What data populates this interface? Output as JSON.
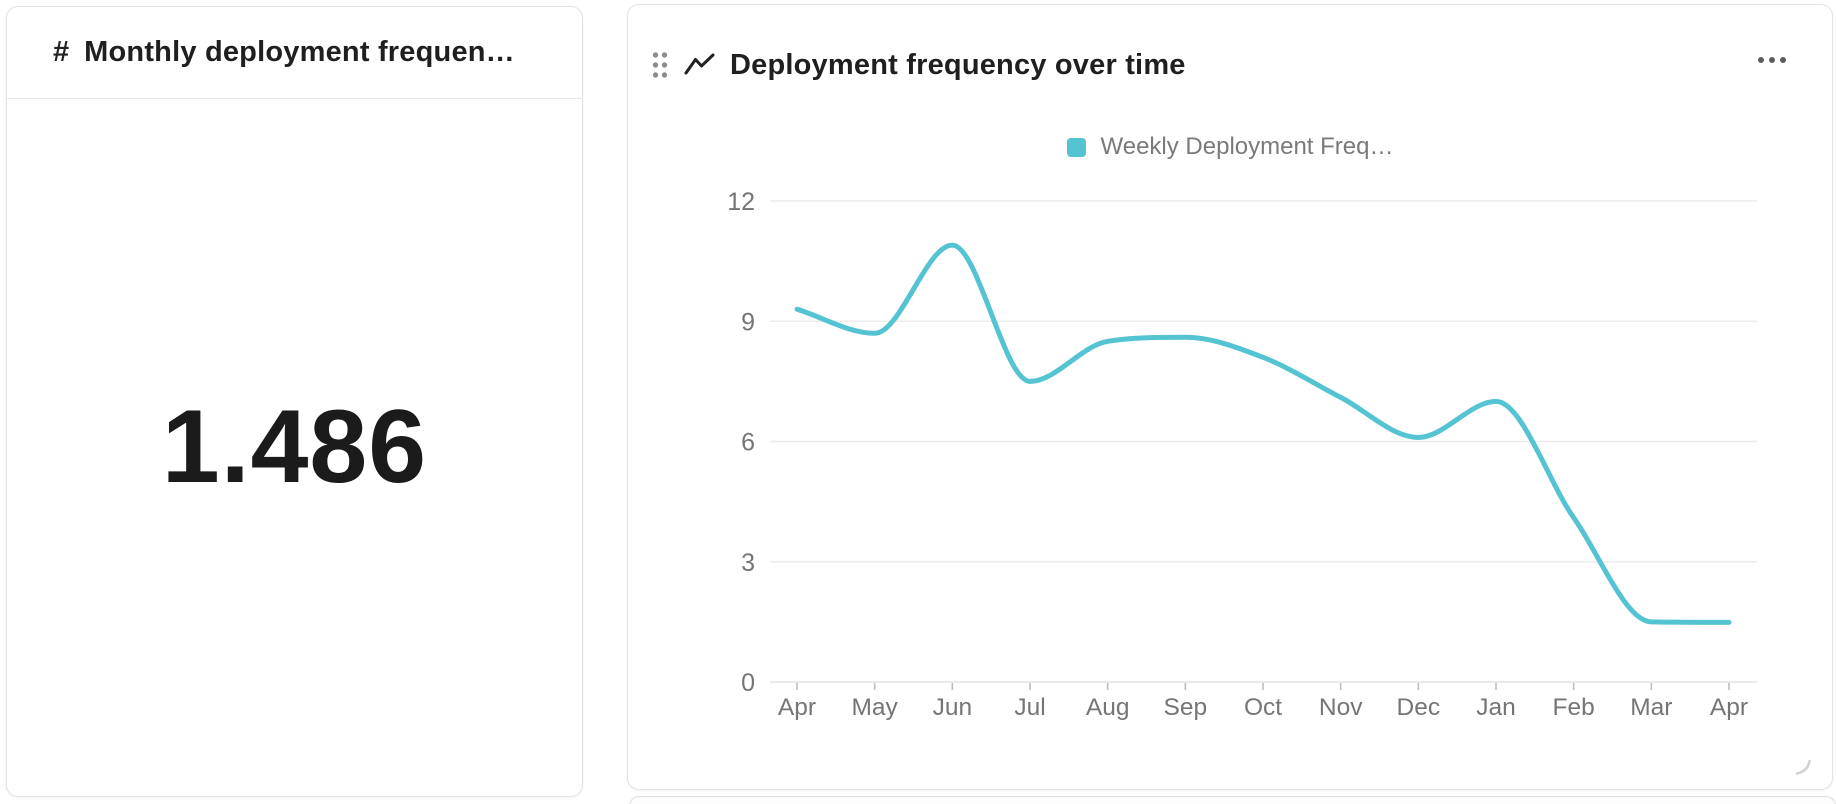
{
  "colors": {
    "accent": "#54c3d2",
    "title_text": "#1f1f1f",
    "muted_text": "#757575",
    "grid": "#ececec"
  },
  "kpi_card": {
    "icon": "number-sign",
    "icon_glyph": "#",
    "title": "Monthly deployment frequen…",
    "value": "1.486"
  },
  "chart_card": {
    "title": "Deployment frequency over time",
    "legend_label": "Weekly Deployment Freq…",
    "icons": {
      "drag_handle": "six-dots-drag-handle",
      "chart_type": "line-chart-zigzag",
      "menu": "ellipsis-more",
      "resize": "corner-resize-grip"
    }
  },
  "chart_data": {
    "type": "line",
    "title": "Deployment frequency over time",
    "categories": [
      "Apr",
      "May",
      "Jun",
      "Jul",
      "Aug",
      "Sep",
      "Oct",
      "Nov",
      "Dec",
      "Jan",
      "Feb",
      "Mar",
      "Apr"
    ],
    "series": [
      {
        "name": "Weekly Deployment Freq…",
        "values": [
          9.3,
          8.7,
          10.9,
          7.5,
          8.5,
          8.6,
          8.1,
          7.1,
          6.1,
          7.0,
          4.1,
          1.5,
          1.486
        ],
        "color": "#54c3d2"
      }
    ],
    "ylim": [
      0,
      12
    ],
    "yticks": [
      0,
      3,
      6,
      9,
      12
    ],
    "grid": true,
    "legend_position": "top",
    "smooth": "monotone"
  }
}
